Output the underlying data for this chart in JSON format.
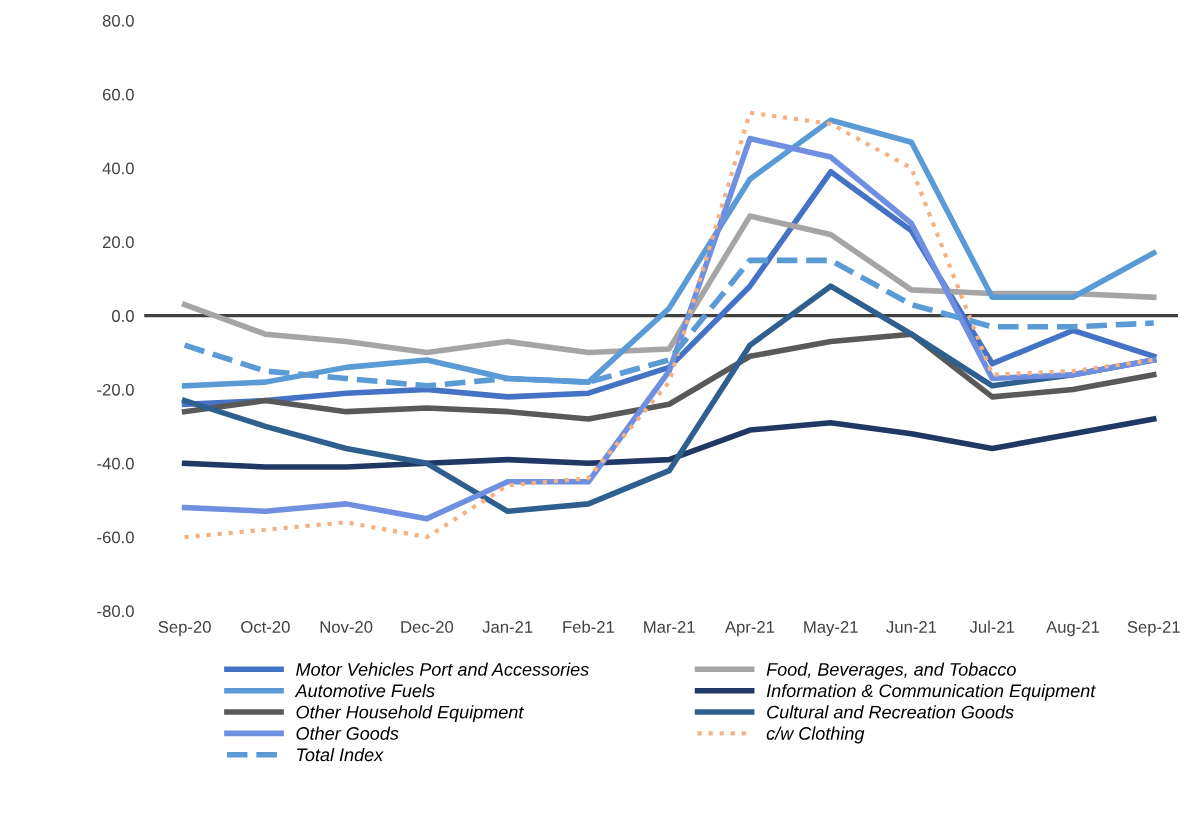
{
  "chart_data": {
    "type": "line",
    "categories": [
      "Sep-20",
      "Oct-20",
      "Nov-20",
      "Dec-20",
      "Jan-21",
      "Feb-21",
      "Mar-21",
      "Apr-21",
      "May-21",
      "Jun-21",
      "Jul-21",
      "Aug-21",
      "Sep-21"
    ],
    "ylim": [
      -80,
      80
    ],
    "yticks": [
      {
        "value": -80,
        "label": "-80.0"
      },
      {
        "value": -60,
        "label": "-60.0"
      },
      {
        "value": -40,
        "label": "-40.0"
      },
      {
        "value": -20,
        "label": "-20.0"
      },
      {
        "value": 0,
        "label": "0.0"
      },
      {
        "value": 20,
        "label": "20.0"
      },
      {
        "value": 40,
        "label": "40.0"
      },
      {
        "value": 60,
        "label": "60.0"
      },
      {
        "value": 80,
        "label": "80.0"
      }
    ],
    "grid": false,
    "legend": "bottom",
    "marker": "none",
    "ref_lines": [
      {
        "axis": "y",
        "value": 0,
        "color": "#404040"
      }
    ],
    "series": [
      {
        "name": "Motor Vehicles Port and Accessories",
        "color": "#4472c4",
        "values": [
          -24,
          -23,
          -21,
          -20,
          -22,
          -21,
          -14,
          8,
          39,
          23,
          -13,
          -4,
          -11
        ]
      },
      {
        "name": "Food, Beverages, and Tobacco",
        "color": "#a5a5a5",
        "values": [
          3,
          -5,
          -7,
          -10,
          -7,
          -10,
          -9,
          27,
          22,
          7,
          6,
          6,
          5
        ]
      },
      {
        "name": "Automotive Fuels",
        "color": "#5b9bd5",
        "values": [
          -19,
          -18,
          -14,
          -12,
          -17,
          -18,
          2,
          37,
          53,
          47,
          5,
          5,
          17
        ]
      },
      {
        "name": "Information & Communication Equipment",
        "color": "#203864",
        "values": [
          -40,
          -41,
          -41,
          -40,
          -39,
          -40,
          -39,
          -31,
          -29,
          -32,
          -36,
          -32,
          -28
        ]
      },
      {
        "name": "Other Household Equipment",
        "color": "#595959",
        "values": [
          -26,
          -23,
          -26,
          -25,
          -26,
          -28,
          -24,
          -11,
          -7,
          -5,
          -22,
          -20,
          -16
        ]
      },
      {
        "name": "Cultural and Recreation Goods",
        "color": "#2e5f8f",
        "values": [
          -23,
          -30,
          -36,
          -40,
          -53,
          -51,
          -42,
          -8,
          8,
          -5,
          -19,
          -16,
          -12
        ]
      },
      {
        "name": "Other Goods",
        "color": "#6f8fe0",
        "values": [
          -52,
          -53,
          -51,
          -55,
          -45,
          -45,
          -15,
          48,
          43,
          25,
          -17,
          -16,
          -12
        ]
      },
      {
        "name": "c/w Clothing",
        "color": "#f4b183",
        "line_style": "dotted",
        "values": [
          -60,
          -58,
          -56,
          -60,
          -46,
          -44,
          -18,
          55,
          52,
          40,
          -16,
          -15,
          -12
        ]
      },
      {
        "name": "Total Index",
        "color": "#5b9bd5",
        "line_style": "dashed",
        "values": [
          -8,
          -15,
          -17,
          -19,
          -17,
          -18,
          -12,
          15,
          15,
          3,
          -3,
          -3,
          -2
        ]
      }
    ]
  }
}
